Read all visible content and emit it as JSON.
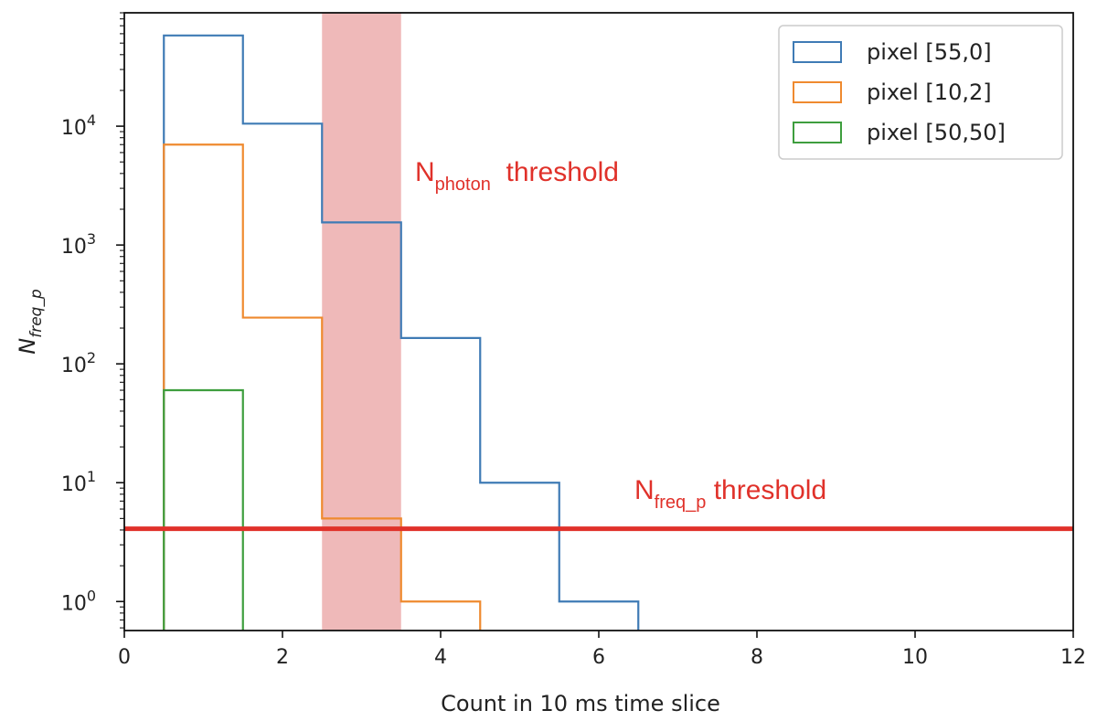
{
  "chart_data": {
    "type": "histogram-step",
    "xlabel": "Count in 10 ms time slice",
    "ylabel": {
      "main": "N",
      "sub": "freq_p"
    },
    "xlim": [
      0,
      12
    ],
    "ylim": [
      0.57,
      90000
    ],
    "yscale": "log",
    "x_ticks": [
      0,
      2,
      4,
      6,
      8,
      10,
      12
    ],
    "y_ticks": [
      {
        "value": 1,
        "base": "10",
        "exp": "0"
      },
      {
        "value": 10,
        "base": "10",
        "exp": "1"
      },
      {
        "value": 100,
        "base": "10",
        "exp": "2"
      },
      {
        "value": 1000,
        "base": "10",
        "exp": "3"
      },
      {
        "value": 10000,
        "base": "10",
        "exp": "4"
      }
    ],
    "bin_edges": [
      0.5,
      1.5,
      2.5,
      3.5,
      4.5,
      5.5,
      6.5
    ],
    "series": [
      {
        "name": "pixel [55,0]",
        "color": "#3f7bb5",
        "values": [
          58000,
          10500,
          1550,
          165,
          10,
          1
        ]
      },
      {
        "name": "pixel [10,2]",
        "color": "#ef8a2f",
        "values": [
          7000,
          245,
          5,
          1
        ]
      },
      {
        "name": "pixel [50,50]",
        "color": "#3e9e3e",
        "values": [
          60
        ]
      }
    ],
    "shaded_band": {
      "x_from": 2.5,
      "x_to": 3.5,
      "color": "#e89b9b"
    },
    "threshold_line": {
      "y": 4.1,
      "color": "#e0312a"
    },
    "annotations": [
      {
        "main": "N",
        "sub": "photon",
        "rest": "threshold"
      },
      {
        "main": "N",
        "sub": "freq_p",
        "rest": "threshold"
      }
    ],
    "legend_position": "top-right",
    "grid": false
  }
}
